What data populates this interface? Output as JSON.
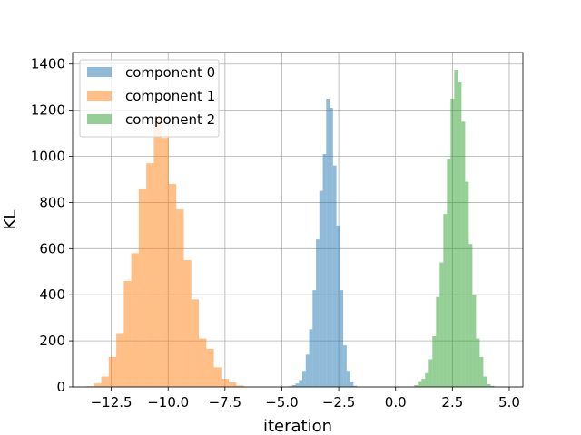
{
  "chart_data": {
    "type": "bar",
    "title": "",
    "xlabel": "iteration",
    "ylabel": "KL",
    "xlim": [
      -14.2,
      5.6
    ],
    "ylim": [
      0,
      1450
    ],
    "xticks": [
      -12.5,
      -10.0,
      -7.5,
      -5.0,
      -2.5,
      0.0,
      2.5,
      5.0
    ],
    "xtick_labels": [
      "−12.5",
      "−10.0",
      "−7.5",
      "−5.0",
      "−2.5",
      "0.0",
      "2.5",
      "5.0"
    ],
    "yticks": [
      0,
      200,
      400,
      600,
      800,
      1000,
      1200,
      1400
    ],
    "ytick_labels": [
      "0",
      "200",
      "400",
      "600",
      "800",
      "1000",
      "1200",
      "1400"
    ],
    "grid": true,
    "legend_placement": "upper-left",
    "series": [
      {
        "name": "component 0",
        "color": "#1f77b4",
        "bin_start": -4.7,
        "bin_width": 0.15,
        "counts": [
          3,
          8,
          15,
          30,
          70,
          140,
          250,
          420,
          640,
          850,
          1010,
          1250,
          1210,
          960,
          700,
          420,
          180,
          70,
          20,
          5
        ]
      },
      {
        "name": "component 1",
        "color": "#ff7f0e",
        "bin_start": -13.6,
        "bin_width": 0.33,
        "counts": [
          3,
          15,
          45,
          130,
          230,
          460,
          580,
          860,
          970,
          1170,
          1080,
          880,
          770,
          550,
          380,
          210,
          165,
          85,
          35,
          20,
          6,
          2
        ]
      },
      {
        "name": "component 2",
        "color": "#2ca02c",
        "bin_start": 0.82,
        "bin_width": 0.16,
        "counts": [
          8,
          25,
          35,
          60,
          120,
          220,
          390,
          540,
          750,
          990,
          1250,
          1375,
          1320,
          1150,
          890,
          620,
          400,
          210,
          130,
          45,
          12,
          5
        ]
      }
    ]
  }
}
